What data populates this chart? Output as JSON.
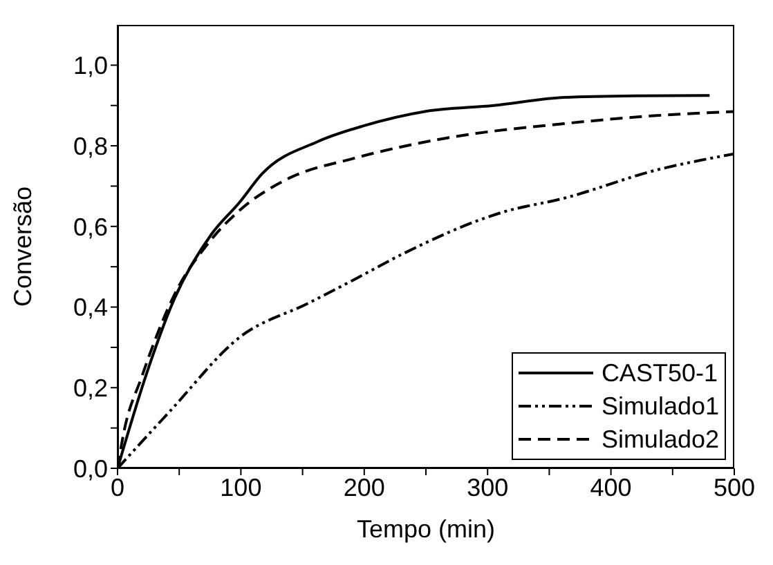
{
  "chart_data": {
    "type": "line",
    "xlabel": "Tempo (min)",
    "ylabel": "Conversão",
    "xlim": [
      0,
      500
    ],
    "ylim": [
      0,
      1.1
    ],
    "xticks": [
      0,
      {
        "value": 50,
        "label": null
      },
      100,
      {
        "value": 150,
        "label": null
      },
      200,
      {
        "value": 250,
        "label": null
      },
      300,
      {
        "value": 350,
        "label": null
      },
      400,
      {
        "value": 450,
        "label": null
      },
      500
    ],
    "yticks": [
      {
        "value": 0,
        "label": "0,0"
      },
      {
        "value": 0.1,
        "label": null
      },
      {
        "value": 0.2,
        "label": "0,2"
      },
      {
        "value": 0.3,
        "label": null
      },
      {
        "value": 0.4,
        "label": "0,4"
      },
      {
        "value": 0.5,
        "label": null
      },
      {
        "value": 0.6,
        "label": "0,6"
      },
      {
        "value": 0.7,
        "label": null
      },
      {
        "value": 0.8,
        "label": "0,8"
      },
      {
        "value": 0.9,
        "label": null
      },
      {
        "value": 1.0,
        "label": "1,0"
      }
    ],
    "legend": "bottom right",
    "marker": "none",
    "series": [
      {
        "name": "CAST50-1",
        "color": "#000000",
        "line_style": "solid",
        "x": [
          0,
          23,
          46,
          76,
          99,
          117,
          162,
          200,
          249,
          305,
          362,
          420,
          480
        ],
        "values": [
          0,
          0.23,
          0.42,
          0.58,
          0.66,
          0.73,
          0.81,
          0.85,
          0.885,
          0.9,
          0.92,
          0.924,
          0.925
        ]
      },
      {
        "name": "Simulado1",
        "color": "#000000",
        "line_style": "dashdotdot",
        "x": [
          0,
          42,
          99,
          155,
          193,
          230,
          313,
          362,
          437,
          500
        ],
        "values": [
          0,
          0.14,
          0.325,
          0.41,
          0.47,
          0.53,
          0.636,
          0.67,
          0.74,
          0.78
        ]
      },
      {
        "name": "Simulado2",
        "color": "#000000",
        "line_style": "dashed",
        "x": [
          0,
          4.5,
          20,
          46,
          74,
          99,
          136,
          193,
          268,
          362,
          437,
          500
        ],
        "values": [
          0,
          0.08,
          0.23,
          0.43,
          0.56,
          0.64,
          0.715,
          0.77,
          0.82,
          0.855,
          0.875,
          0.885
        ]
      }
    ]
  }
}
